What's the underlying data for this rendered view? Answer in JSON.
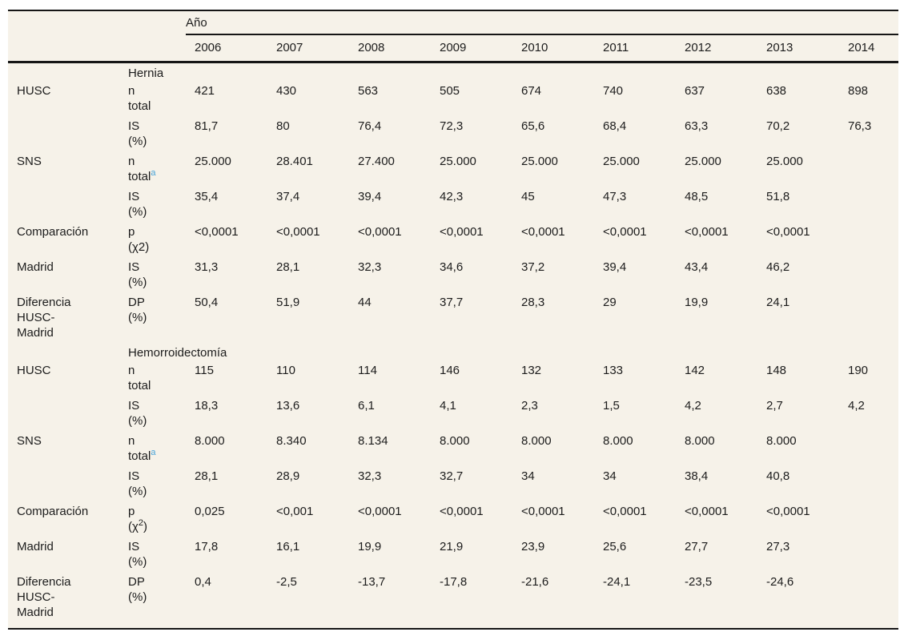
{
  "table": {
    "year_group_label": "Año",
    "years": [
      "2006",
      "2007",
      "2008",
      "2009",
      "2010",
      "2011",
      "2012",
      "2013",
      "2014"
    ],
    "colors": {
      "table_background": "#f6f2e9",
      "rule": "#161616",
      "text": "#1c1c1c",
      "footnote_link": "#48a3d8"
    },
    "rows": [
      {
        "type": "section",
        "title": "Hernia"
      },
      {
        "type": "data",
        "entity": "HUSC",
        "measure": "n\ntotal",
        "values": [
          "421",
          "430",
          "563",
          "505",
          "674",
          "740",
          "637",
          "638",
          "898"
        ]
      },
      {
        "type": "data",
        "entity": "",
        "measure": "IS\n(%)",
        "values": [
          "81,7",
          "80",
          "76,4",
          "72,3",
          "65,6",
          "68,4",
          "63,3",
          "70,2",
          "76,3"
        ]
      },
      {
        "type": "data",
        "entity": "SNS",
        "measure": "n\ntotal~{a}",
        "values": [
          "25.000",
          "28.401",
          "27.400",
          "25.000",
          "25.000",
          "25.000",
          "25.000",
          "25.000",
          ""
        ]
      },
      {
        "type": "data",
        "entity": "",
        "measure": "IS\n(%)",
        "values": [
          "35,4",
          "37,4",
          "39,4",
          "42,3",
          "45",
          "47,3",
          "48,5",
          "51,8",
          ""
        ]
      },
      {
        "type": "data",
        "entity": "Comparación",
        "measure": "p\n(χ2)",
        "values": [
          "<0,0001",
          "<0,0001",
          "<0,0001",
          "<0,0001",
          "<0,0001",
          "<0,0001",
          "<0,0001",
          "<0,0001",
          ""
        ]
      },
      {
        "type": "data",
        "entity": "Madrid",
        "measure": "IS\n(%)",
        "values": [
          "31,3",
          "28,1",
          "32,3",
          "34,6",
          "37,2",
          "39,4",
          "43,4",
          "46,2",
          ""
        ]
      },
      {
        "type": "data",
        "entity": "Diferencia\nHUSC-\nMadrid",
        "measure": "DP\n(%)",
        "values": [
          "50,4",
          "51,9",
          "44",
          "37,7",
          "28,3",
          "29",
          "19,9",
          "24,1",
          ""
        ]
      },
      {
        "type": "section",
        "title": "Hemorroidectomía"
      },
      {
        "type": "data",
        "entity": "HUSC",
        "measure": "n\ntotal",
        "values": [
          "115",
          "110",
          "114",
          "146",
          "132",
          "133",
          "142",
          "148",
          "190"
        ]
      },
      {
        "type": "data",
        "entity": "",
        "measure": "IS\n(%)",
        "values": [
          "18,3",
          "13,6",
          "6,1",
          "4,1",
          "2,3",
          "1,5",
          "4,2",
          "2,7",
          "4,2"
        ]
      },
      {
        "type": "data",
        "entity": "SNS",
        "measure": "n\ntotal~{a}",
        "values": [
          "8.000",
          "8.340",
          "8.134",
          "8.000",
          "8.000",
          "8.000",
          "8.000",
          "8.000",
          ""
        ]
      },
      {
        "type": "data",
        "entity": "",
        "measure": "IS\n(%)",
        "values": [
          "28,1",
          "28,9",
          "32,3",
          "32,7",
          "34",
          "34",
          "38,4",
          "40,8",
          ""
        ]
      },
      {
        "type": "data",
        "entity": "Comparación",
        "measure": "p\n(χ^{2})",
        "values": [
          "0,025",
          "<0,001",
          "<0,0001",
          "<0,0001",
          "<0,0001",
          "<0,0001",
          "<0,0001",
          "<0,0001",
          ""
        ]
      },
      {
        "type": "data",
        "entity": "Madrid",
        "measure": "IS\n(%)",
        "values": [
          "17,8",
          "16,1",
          "19,9",
          "21,9",
          "23,9",
          "25,6",
          "27,7",
          "27,3",
          ""
        ]
      },
      {
        "type": "data",
        "entity": "Diferencia\nHUSC-\nMadrid",
        "measure": "DP\n(%)",
        "values": [
          "0,4",
          "-2,5",
          "-13,7",
          "-17,8",
          "-21,6",
          "-24,1",
          "-23,5",
          "-24,6",
          ""
        ]
      }
    ]
  }
}
